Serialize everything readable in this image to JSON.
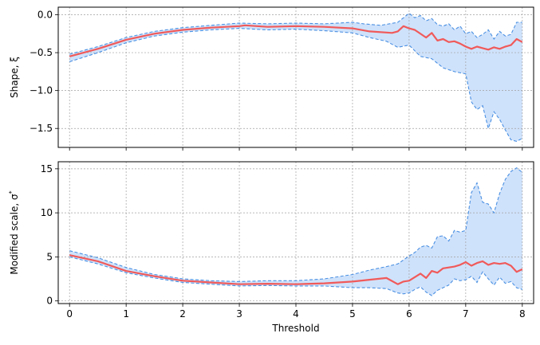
{
  "chart_data": [
    {
      "type": "line",
      "ylabel": "Shape, ξ",
      "xlabel": "",
      "xlim": [
        -0.2,
        8.2
      ],
      "ylim": [
        -1.75,
        0.1
      ],
      "xticks": [
        0,
        1,
        2,
        3,
        4,
        5,
        6,
        7,
        8
      ],
      "yticks": [
        0.0,
        -0.5,
        -1.0,
        -1.5
      ],
      "ytick_labels": [
        "0.0",
        "−0.5",
        "−1.0",
        "−1.5"
      ],
      "grid": true,
      "show_x_tick_labels": false,
      "series": [
        {
          "role": "estimate",
          "color": "#f05a5a",
          "x": [
            0,
            0.5,
            1,
            1.5,
            2,
            2.5,
            3,
            3.1,
            3.5,
            4,
            4.5,
            5,
            5.3,
            5.7,
            5.8,
            5.9,
            6,
            6.1,
            6.3,
            6.4,
            6.5,
            6.6,
            6.7,
            6.8,
            6.9,
            7,
            7.1,
            7.2,
            7.3,
            7.4,
            7.5,
            7.6,
            7.7,
            7.8,
            7.9,
            8
          ],
          "values": [
            -0.55,
            -0.45,
            -0.33,
            -0.25,
            -0.2,
            -0.17,
            -0.15,
            -0.14,
            -0.16,
            -0.15,
            -0.16,
            -0.18,
            -0.22,
            -0.24,
            -0.22,
            -0.15,
            -0.18,
            -0.2,
            -0.3,
            -0.24,
            -0.34,
            -0.32,
            -0.36,
            -0.35,
            -0.38,
            -0.42,
            -0.45,
            -0.42,
            -0.44,
            -0.46,
            -0.43,
            -0.45,
            -0.42,
            -0.4,
            -0.32,
            -0.36
          ]
        },
        {
          "role": "upper-bound",
          "color": "#4a90e2",
          "x": [
            0,
            0.5,
            1,
            1.5,
            2,
            2.5,
            3,
            3.5,
            4,
            4.5,
            5,
            5.2,
            5.5,
            5.8,
            6,
            6.1,
            6.2,
            6.3,
            6.4,
            6.5,
            6.6,
            6.7,
            6.8,
            6.9,
            7,
            7.1,
            7.2,
            7.3,
            7.4,
            7.5,
            7.6,
            7.7,
            7.8,
            7.9,
            8
          ],
          "values": [
            -0.52,
            -0.42,
            -0.3,
            -0.22,
            -0.17,
            -0.14,
            -0.11,
            -0.12,
            -0.11,
            -0.12,
            -0.1,
            -0.12,
            -0.14,
            -0.1,
            0.02,
            -0.04,
            -0.01,
            -0.08,
            -0.05,
            -0.13,
            -0.15,
            -0.12,
            -0.2,
            -0.15,
            -0.25,
            -0.22,
            -0.3,
            -0.26,
            -0.2,
            -0.32,
            -0.22,
            -0.28,
            -0.26,
            -0.1,
            -0.1
          ]
        },
        {
          "role": "lower-bound",
          "color": "#4a90e2",
          "x": [
            0,
            0.5,
            1,
            1.5,
            2,
            2.5,
            3,
            3.5,
            4,
            4.5,
            5,
            5.3,
            5.6,
            5.8,
            6,
            6.2,
            6.4,
            6.6,
            6.8,
            7,
            7.1,
            7.2,
            7.3,
            7.4,
            7.5,
            7.6,
            7.7,
            7.8,
            7.9,
            8
          ],
          "values": [
            -0.62,
            -0.5,
            -0.37,
            -0.28,
            -0.23,
            -0.2,
            -0.18,
            -0.2,
            -0.19,
            -0.21,
            -0.24,
            -0.3,
            -0.35,
            -0.43,
            -0.4,
            -0.55,
            -0.58,
            -0.7,
            -0.75,
            -0.78,
            -1.15,
            -1.25,
            -1.2,
            -1.5,
            -1.28,
            -1.38,
            -1.52,
            -1.65,
            -1.67,
            -1.63
          ]
        }
      ]
    },
    {
      "type": "line",
      "ylabel": "Modified scale, σ*",
      "ylabel_text": "Modified scale, σ",
      "ylabel_superscript": "*",
      "xlabel": "Threshold",
      "xlim": [
        -0.2,
        8.2
      ],
      "ylim": [
        -0.3,
        15.8
      ],
      "xticks": [
        0,
        1,
        2,
        3,
        4,
        5,
        6,
        7,
        8
      ],
      "xtick_labels": [
        "0",
        "1",
        "2",
        "3",
        "4",
        "5",
        "6",
        "7",
        "8"
      ],
      "yticks": [
        0,
        5,
        10,
        15
      ],
      "ytick_labels": [
        "0",
        "5",
        "10",
        "15"
      ],
      "grid": true,
      "show_x_tick_labels": true,
      "series": [
        {
          "role": "estimate",
          "color": "#f05a5a",
          "x": [
            0,
            0.5,
            1,
            1.5,
            2,
            2.5,
            3,
            3.5,
            4,
            4.5,
            5,
            5.3,
            5.6,
            5.8,
            5.9,
            6,
            6.2,
            6.3,
            6.4,
            6.5,
            6.6,
            6.7,
            6.8,
            6.9,
            7,
            7.1,
            7.2,
            7.3,
            7.4,
            7.5,
            7.6,
            7.7,
            7.8,
            7.9,
            8
          ],
          "values": [
            5.2,
            4.5,
            3.4,
            2.8,
            2.3,
            2.1,
            1.9,
            1.95,
            1.9,
            2.0,
            2.2,
            2.4,
            2.6,
            1.9,
            2.2,
            2.3,
            3.1,
            2.6,
            3.4,
            3.2,
            3.7,
            3.8,
            3.9,
            4.1,
            4.4,
            4.0,
            4.3,
            4.5,
            4.1,
            4.3,
            4.2,
            4.3,
            4.0,
            3.3,
            3.6
          ]
        },
        {
          "role": "upper-bound",
          "color": "#4a90e2",
          "x": [
            0,
            0.5,
            1,
            1.5,
            2,
            2.5,
            3,
            3.5,
            4,
            4.5,
            5,
            5.3,
            5.6,
            5.8,
            6,
            6.1,
            6.2,
            6.3,
            6.4,
            6.5,
            6.6,
            6.7,
            6.8,
            6.9,
            7,
            7.1,
            7.2,
            7.3,
            7.4,
            7.5,
            7.6,
            7.7,
            7.8,
            7.9,
            8
          ],
          "values": [
            5.7,
            4.9,
            3.8,
            3.0,
            2.5,
            2.3,
            2.2,
            2.3,
            2.3,
            2.5,
            3.0,
            3.5,
            3.9,
            4.2,
            5.1,
            5.5,
            6.1,
            6.3,
            6.0,
            7.3,
            7.4,
            6.8,
            8.0,
            7.8,
            8.0,
            12.3,
            13.4,
            11.2,
            11.0,
            10.0,
            12.2,
            13.8,
            14.7,
            15.1,
            14.6
          ]
        },
        {
          "role": "lower-bound",
          "color": "#4a90e2",
          "x": [
            0,
            0.5,
            1,
            1.5,
            2,
            2.5,
            3,
            3.5,
            4,
            4.5,
            5,
            5.3,
            5.6,
            5.8,
            5.9,
            6,
            6.1,
            6.2,
            6.3,
            6.4,
            6.5,
            6.6,
            6.7,
            6.8,
            6.9,
            7,
            7.1,
            7.2,
            7.3,
            7.4,
            7.5,
            7.6,
            7.7,
            7.8,
            7.9,
            8
          ],
          "values": [
            5.0,
            4.2,
            3.2,
            2.6,
            2.1,
            1.9,
            1.7,
            1.75,
            1.7,
            1.7,
            1.5,
            1.5,
            1.4,
            0.9,
            0.8,
            0.9,
            1.3,
            1.6,
            1.0,
            0.6,
            1.2,
            1.5,
            1.8,
            2.5,
            2.3,
            2.4,
            2.8,
            2.1,
            3.3,
            2.5,
            1.8,
            2.7,
            2.0,
            2.2,
            1.5,
            1.3
          ]
        }
      ]
    }
  ]
}
